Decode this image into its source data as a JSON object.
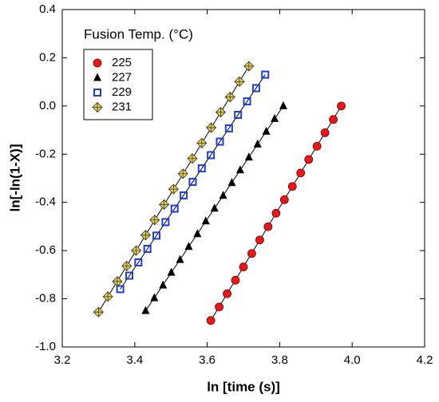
{
  "chart_data": {
    "type": "scatter",
    "xlabel": "ln [time (s)]",
    "ylabel": "ln[-ln(1-X)]",
    "legend_title": "Fusion Temp. (°C)",
    "xlim": [
      3.2,
      4.2
    ],
    "xticks": [
      3.2,
      3.4,
      3.6,
      3.8,
      {
        "value": 4.0,
        "label": "4.0"
      },
      4.2
    ],
    "ylim": [
      -1.0,
      0.4
    ],
    "yticks": [
      {
        "value": -1.0,
        "label": "-1.0"
      },
      -0.8,
      -0.6,
      -0.4,
      -0.2,
      {
        "value": 0,
        "label": "0.0"
      },
      0.2,
      0.4
    ],
    "legend": "upper left",
    "fit_lines": true,
    "series": [
      {
        "name": "225",
        "color": "#e31a1c",
        "marker": "circle",
        "x": [
          3.61,
          3.633,
          3.655,
          3.678,
          3.7,
          3.723,
          3.745,
          3.768,
          3.79,
          3.813,
          3.835,
          3.858,
          3.88,
          3.903,
          3.925,
          3.948,
          3.97
        ],
        "values": [
          -0.89,
          -0.834,
          -0.779,
          -0.723,
          -0.668,
          -0.612,
          -0.556,
          -0.501,
          -0.445,
          -0.389,
          -0.334,
          -0.278,
          -0.222,
          -0.167,
          -0.111,
          -0.056,
          0
        ]
      },
      {
        "name": "227",
        "color": "#000000",
        "marker": "triangle",
        "x": [
          3.43,
          3.454,
          3.478,
          3.501,
          3.525,
          3.549,
          3.573,
          3.596,
          3.62,
          3.644,
          3.668,
          3.691,
          3.715,
          3.739,
          3.763,
          3.786,
          3.81
        ],
        "values": [
          -0.85,
          -0.797,
          -0.744,
          -0.691,
          -0.638,
          -0.584,
          -0.531,
          -0.478,
          -0.425,
          -0.372,
          -0.319,
          -0.266,
          -0.213,
          -0.159,
          -0.106,
          -0.053,
          0
        ]
      },
      {
        "name": "229",
        "color": "#1f3fd0",
        "marker": "square",
        "x": [
          3.36,
          3.385,
          3.41,
          3.435,
          3.46,
          3.485,
          3.51,
          3.535,
          3.56,
          3.585,
          3.61,
          3.635,
          3.66,
          3.685,
          3.71,
          3.735,
          3.76
        ],
        "values": [
          -0.76,
          -0.704,
          -0.649,
          -0.593,
          -0.538,
          -0.482,
          -0.426,
          -0.371,
          -0.315,
          -0.259,
          -0.204,
          -0.148,
          -0.093,
          -0.037,
          0.019,
          0.074,
          0.13
        ]
      },
      {
        "name": "231",
        "color": "#e8d24a",
        "marker": "diamond",
        "x": [
          3.3,
          3.326,
          3.352,
          3.378,
          3.404,
          3.43,
          3.455,
          3.481,
          3.507,
          3.533,
          3.559,
          3.585,
          3.611,
          3.637,
          3.663,
          3.689,
          3.715
        ],
        "values": [
          -0.855,
          -0.791,
          -0.728,
          -0.664,
          -0.6,
          -0.536,
          -0.473,
          -0.409,
          -0.345,
          -0.281,
          -0.218,
          -0.154,
          -0.09,
          -0.026,
          0.037,
          0.101,
          0.165
        ]
      }
    ]
  }
}
